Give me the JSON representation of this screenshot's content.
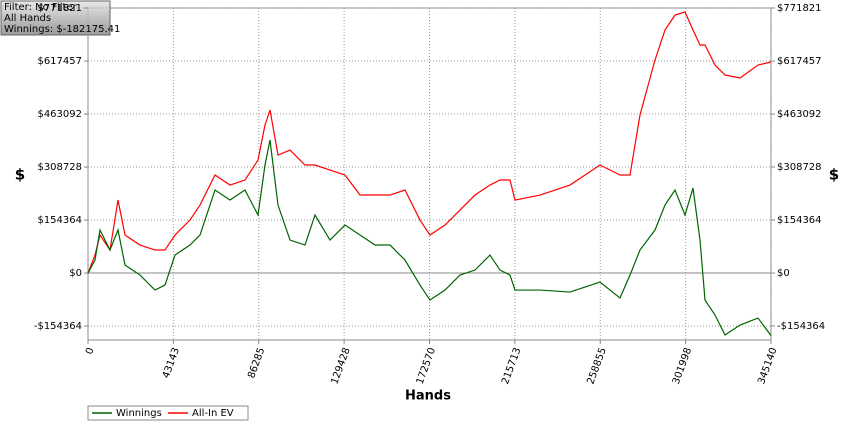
{
  "chart_data": {
    "type": "line",
    "annotations": [
      "Filter: No Filter",
      "All Hands",
      "Winnings: $-182175.41"
    ],
    "xlabel": "Hands",
    "ylabel": "$",
    "x": [
      0,
      3537,
      6064,
      11117,
      15160,
      18697,
      26277,
      33857,
      38910,
      43963,
      51543,
      56597,
      64176,
      71756,
      79336,
      85906,
      89443,
      91970,
      96012,
      102076,
      109656,
      114709,
      122289,
      129869,
      137449,
      145029,
      152609,
      160189,
      167768,
      172822,
      180402,
      187982,
      195562,
      203142,
      208195,
      213248,
      215775,
      228409,
      243569,
      258729,
      268836,
      273889,
      278943,
      286522,
      291576,
      296629,
      301683,
      305725,
      309262,
      311789,
      316843,
      321896,
      329476,
      338572,
      345140
    ],
    "series": [
      {
        "name": "Winnings",
        "color": "#006400",
        "values": [
          0,
          37863,
          125238,
          66988,
          125238,
          23300,
          -5825,
          -49513,
          -34950,
          52425,
          81550,
          110675,
          241738,
          212613,
          241738,
          168925,
          314550,
          387363,
          198050,
          96113,
          81550,
          168925,
          96113,
          139800,
          110675,
          81550,
          81550,
          37863,
          -34950,
          -78638,
          -49513,
          -5825,
          8738,
          52425,
          8738,
          -5825,
          -49513,
          -49513,
          -55338,
          -26213,
          -72813,
          -5825,
          66988,
          125238,
          198050,
          241738,
          168925,
          247563,
          96113,
          -78638,
          -122325,
          -180575,
          -151450,
          -131063,
          -182175
        ]
      },
      {
        "name": "All-In EV",
        "color": "#ff0000",
        "values": [
          0,
          52425,
          110675,
          66988,
          212613,
          110675,
          81550,
          66988,
          66988,
          110675,
          154363,
          198050,
          285425,
          256300,
          270863,
          329113,
          431050,
          474738,
          343675,
          358238,
          314550,
          314550,
          299988,
          285425,
          227175,
          227175,
          227175,
          241738,
          154363,
          110675,
          139800,
          183488,
          227175,
          256300,
          270863,
          270863,
          212613,
          227175,
          256300,
          314550,
          285425,
          285425,
          460175,
          620363,
          707738,
          751425,
          760163,
          707738,
          664050,
          664050,
          605800,
          576675,
          567938,
          605800,
          614538
        ]
      }
    ],
    "xlim": [
      0,
      345140
    ],
    "xticks": [
      0,
      43143,
      86285,
      129428,
      172570,
      215713,
      258855,
      301998,
      345140
    ],
    "ylim": [
      -195000,
      771821
    ],
    "yticks": [
      {
        "value": -154364,
        "label": "-$154364"
      },
      {
        "value": 0,
        "label": "$0"
      },
      {
        "value": 154364,
        "label": "$154364"
      },
      {
        "value": 308728,
        "label": "$308728"
      },
      {
        "value": 463092,
        "label": "$463092"
      },
      {
        "value": 617457,
        "label": "$617457"
      },
      {
        "value": 771821,
        "label": "$771821"
      }
    ],
    "grid": true,
    "legend": "bottom-left"
  }
}
